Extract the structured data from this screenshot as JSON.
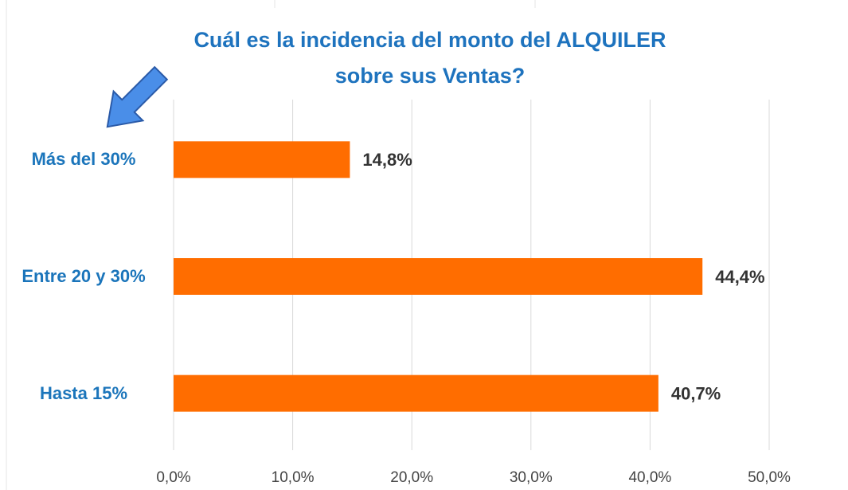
{
  "chart_data": {
    "type": "bar",
    "orientation": "horizontal",
    "title": [
      "Cuál es la incidencia del monto del ALQUILER",
      "sobre sus Ventas?"
    ],
    "categories": [
      "Más del 30%",
      "Entre 20 y 30%",
      "Hasta 15%"
    ],
    "values": [
      14.8,
      44.4,
      40.7
    ],
    "value_labels": [
      "14,8%",
      "44,4%",
      "40,7%"
    ],
    "color": "#ff6d00",
    "xlim": [
      0,
      50
    ],
    "xticks": [
      {
        "value": 0,
        "label": "0,0%"
      },
      {
        "value": 10,
        "label": "10,0%"
      },
      {
        "value": 20,
        "label": "20,0%"
      },
      {
        "value": 30,
        "label": "30,0%"
      },
      {
        "value": 40,
        "label": "40,0%"
      },
      {
        "value": 50,
        "label": "50,0%"
      }
    ],
    "grid": true
  }
}
